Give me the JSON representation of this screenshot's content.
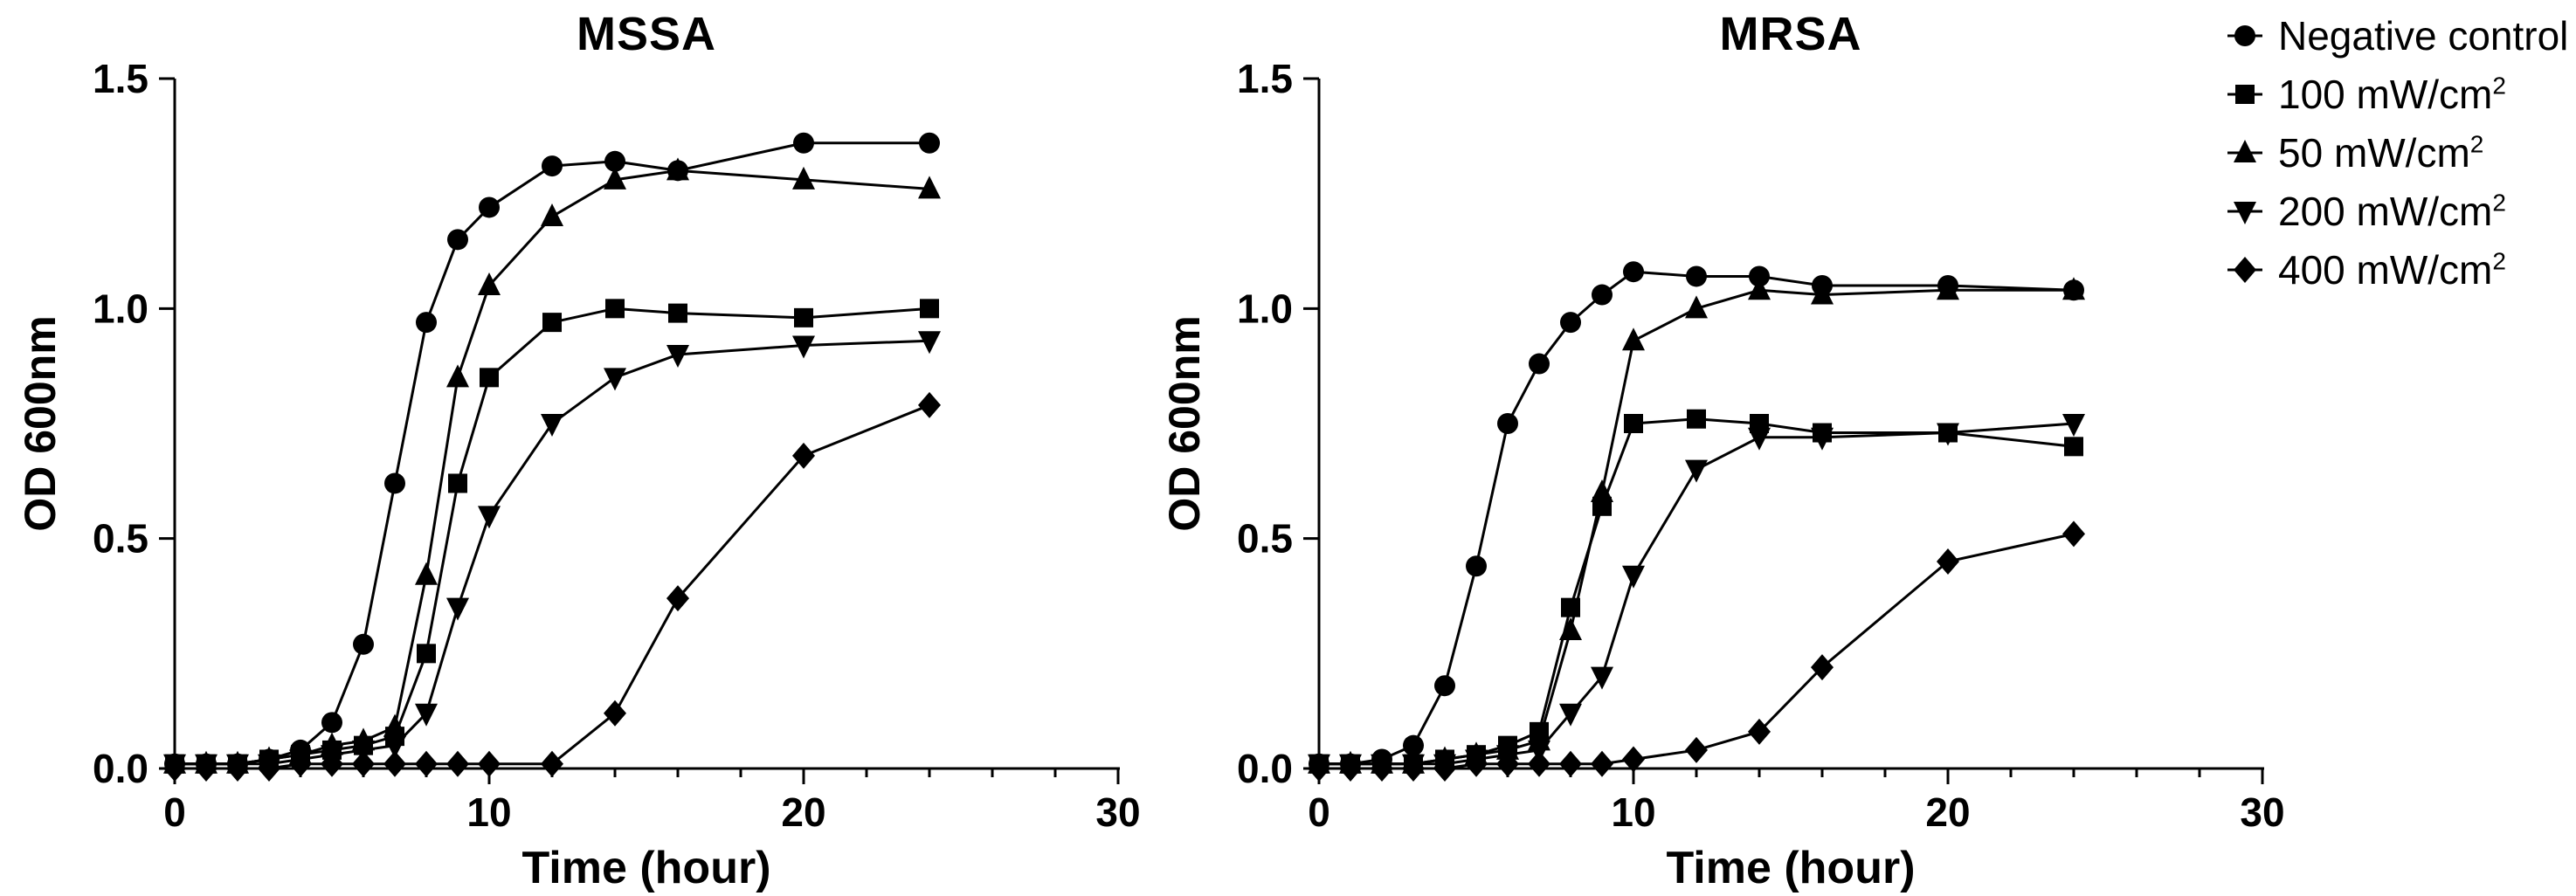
{
  "figure": {
    "background": "#ffffff",
    "series_color": "#000000"
  },
  "legend": {
    "position": "top-right",
    "items": [
      {
        "marker": "circle",
        "label": "Negative control",
        "sup": ""
      },
      {
        "marker": "square",
        "label": "100 mW/cm",
        "sup": "2"
      },
      {
        "marker": "triangle-up",
        "label": "50 mW/cm",
        "sup": "2"
      },
      {
        "marker": "triangle-down",
        "label": "200 mW/cm",
        "sup": "2"
      },
      {
        "marker": "diamond",
        "label": "400 mW/cm",
        "sup": "2"
      }
    ]
  },
  "chart_data": [
    {
      "type": "line",
      "title": "MSSA",
      "xlabel": "Time (hour)",
      "ylabel": "OD 600nm",
      "xlim": [
        0,
        30
      ],
      "ylim": [
        0,
        1.5
      ],
      "grid": false,
      "xticks": [
        0,
        10,
        20,
        30
      ],
      "xtick_labels": [
        "0",
        "10",
        "20",
        "30"
      ],
      "x_minor_step": 2,
      "yticks": [
        0,
        0.5,
        1.0,
        1.5
      ],
      "ytick_labels": [
        "0.0",
        "0.5",
        "1.0",
        "1.5"
      ],
      "x": [
        0,
        1,
        2,
        3,
        4,
        5,
        6,
        7,
        8,
        9,
        10,
        12,
        14,
        16,
        20,
        24
      ],
      "series": [
        {
          "name": "Negative control",
          "marker": "circle",
          "values": [
            0.01,
            0.01,
            0.01,
            0.02,
            0.04,
            0.1,
            0.27,
            0.62,
            0.97,
            1.15,
            1.22,
            1.31,
            1.32,
            1.3,
            1.36,
            1.36
          ]
        },
        {
          "name": "100 mW/cm²",
          "marker": "square",
          "values": [
            0.01,
            0.01,
            0.01,
            0.02,
            0.03,
            0.04,
            0.05,
            0.07,
            0.25,
            0.62,
            0.85,
            0.97,
            1.0,
            0.99,
            0.98,
            1.0
          ]
        },
        {
          "name": "50 mW/cm²",
          "marker": "triangle-up",
          "values": [
            0.01,
            0.01,
            0.01,
            0.02,
            0.03,
            0.05,
            0.06,
            0.09,
            0.42,
            0.85,
            1.05,
            1.2,
            1.28,
            1.3,
            1.28,
            1.26
          ]
        },
        {
          "name": "200 mW/cm²",
          "marker": "triangle-down",
          "values": [
            0.01,
            0.01,
            0.01,
            0.01,
            0.02,
            0.03,
            0.04,
            0.05,
            0.12,
            0.35,
            0.55,
            0.75,
            0.85,
            0.9,
            0.92,
            0.93
          ]
        },
        {
          "name": "400 mW/cm²",
          "marker": "diamond",
          "values": [
            0.0,
            0.0,
            0.0,
            0.0,
            0.01,
            0.01,
            0.01,
            0.01,
            0.01,
            0.01,
            0.01,
            0.01,
            0.12,
            0.37,
            0.68,
            0.79
          ]
        }
      ]
    },
    {
      "type": "line",
      "title": "MRSA",
      "xlabel": "Time (hour)",
      "ylabel": "OD 600nm",
      "xlim": [
        0,
        30
      ],
      "ylim": [
        0,
        1.5
      ],
      "grid": false,
      "xticks": [
        0,
        10,
        20,
        30
      ],
      "xtick_labels": [
        "0",
        "10",
        "20",
        "30"
      ],
      "x_minor_step": 2,
      "yticks": [
        0,
        0.5,
        1.0,
        1.5
      ],
      "ytick_labels": [
        "0.0",
        "0.5",
        "1.0",
        "1.5"
      ],
      "x": [
        0,
        1,
        2,
        3,
        4,
        5,
        6,
        7,
        8,
        9,
        10,
        12,
        14,
        16,
        20,
        24
      ],
      "series": [
        {
          "name": "Negative control",
          "marker": "circle",
          "values": [
            0.01,
            0.01,
            0.02,
            0.05,
            0.18,
            0.44,
            0.75,
            0.88,
            0.97,
            1.03,
            1.08,
            1.07,
            1.07,
            1.05,
            1.05,
            1.04
          ]
        },
        {
          "name": "100 mW/cm²",
          "marker": "square",
          "values": [
            0.01,
            0.01,
            0.01,
            0.01,
            0.02,
            0.03,
            0.05,
            0.08,
            0.35,
            0.57,
            0.75,
            0.76,
            0.75,
            0.73,
            0.73,
            0.7
          ]
        },
        {
          "name": "50 mW/cm²",
          "marker": "triangle-up",
          "values": [
            0.01,
            0.01,
            0.01,
            0.01,
            0.02,
            0.03,
            0.04,
            0.06,
            0.3,
            0.6,
            0.93,
            1.0,
            1.04,
            1.03,
            1.04,
            1.04
          ]
        },
        {
          "name": "200 mW/cm²",
          "marker": "triangle-down",
          "values": [
            0.01,
            0.01,
            0.01,
            0.01,
            0.01,
            0.02,
            0.03,
            0.04,
            0.12,
            0.2,
            0.42,
            0.65,
            0.72,
            0.72,
            0.73,
            0.75
          ]
        },
        {
          "name": "400 mW/cm²",
          "marker": "diamond",
          "values": [
            0.0,
            0.0,
            0.0,
            0.0,
            0.0,
            0.01,
            0.01,
            0.01,
            0.01,
            0.01,
            0.02,
            0.04,
            0.08,
            0.22,
            0.45,
            0.51
          ]
        }
      ]
    }
  ]
}
